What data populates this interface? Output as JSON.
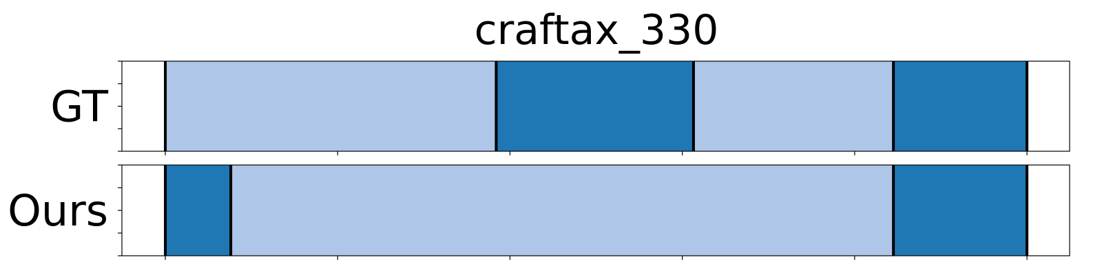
{
  "chart_data": {
    "type": "segmentation-timeline",
    "title": "craftax_330",
    "xlim": [
      0,
      1000
    ],
    "x_ticks": [
      50,
      250,
      450,
      650,
      850,
      1050
    ],
    "grid": false,
    "colors": {
      "light": "#aec7e8",
      "dark": "#1f77b4",
      "boundary": "#000000"
    },
    "rows": [
      {
        "label": "GT",
        "segments": [
          {
            "start": 50,
            "end": 434,
            "class": "light"
          },
          {
            "start": 434,
            "end": 663,
            "class": "dark"
          },
          {
            "start": 663,
            "end": 895,
            "class": "light"
          },
          {
            "start": 895,
            "end": 1050,
            "class": "dark"
          }
        ],
        "boundaries": [
          50,
          434,
          663,
          895,
          1050
        ]
      },
      {
        "label": "Ours",
        "segments": [
          {
            "start": 50,
            "end": 126,
            "class": "dark"
          },
          {
            "start": 126,
            "end": 895,
            "class": "light"
          },
          {
            "start": 895,
            "end": 1050,
            "class": "dark"
          }
        ],
        "boundaries": [
          50,
          126,
          895,
          1050
        ]
      }
    ]
  }
}
